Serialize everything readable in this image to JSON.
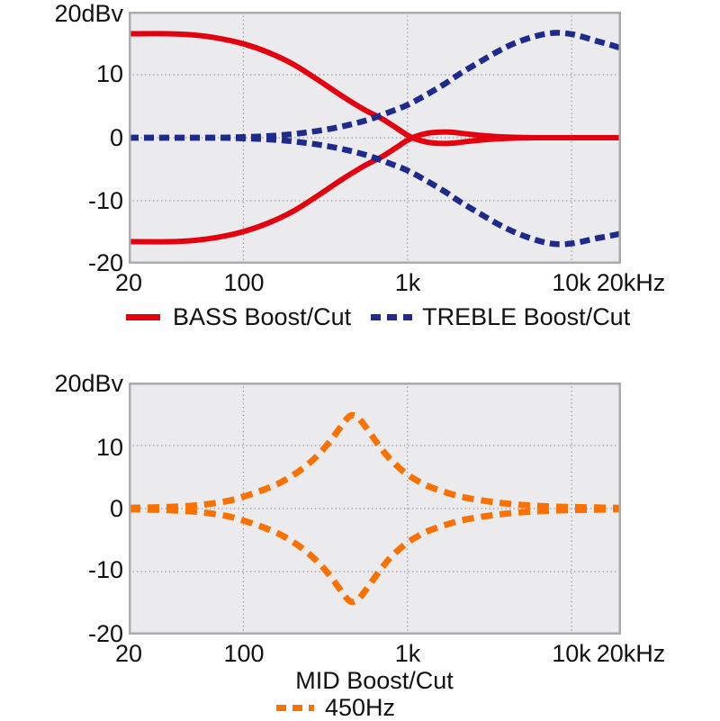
{
  "chart_data": [
    {
      "type": "line",
      "x_scale": "log",
      "freq_range_hz": [
        20,
        20000
      ],
      "db_range": [
        -20,
        20
      ],
      "y_axis_top_label": "20dBv",
      "x_tick_labels": [
        "20",
        "100",
        "1k",
        "10k",
        "20kHz"
      ],
      "y_tick_labels": [
        "10",
        "0",
        "-10",
        "-20"
      ],
      "x_grid_freqs": [
        100,
        1000,
        10000
      ],
      "y_grid_db": [
        10,
        0,
        -10
      ],
      "plot_bg": "#ebebee",
      "grid_on": true,
      "legend_position": "bottom",
      "legend": [
        {
          "label": "BASS Boost/Cut",
          "color": "#e3000f",
          "style": "solid"
        },
        {
          "label": "TREBLE Boost/Cut",
          "color": "#202a8a",
          "style": "dashed"
        }
      ],
      "series": [
        {
          "name": "bass-boost",
          "color": "#e3000f",
          "width": 6,
          "dash": null,
          "points": [
            [
              20,
              16.5
            ],
            [
              35,
              16.5
            ],
            [
              50,
              16.3
            ],
            [
              70,
              15.8
            ],
            [
              100,
              14.9
            ],
            [
              140,
              13.6
            ],
            [
              200,
              11.7
            ],
            [
              280,
              9.3
            ],
            [
              400,
              6.6
            ],
            [
              550,
              4.4
            ],
            [
              700,
              3.0
            ],
            [
              850,
              1.6
            ],
            [
              1000,
              0.4
            ],
            [
              1150,
              -0.3
            ],
            [
              1400,
              -0.8
            ],
            [
              1800,
              -0.9
            ],
            [
              2300,
              -0.6
            ],
            [
              3000,
              -0.3
            ],
            [
              4000,
              -0.1
            ],
            [
              6000,
              0
            ],
            [
              10000,
              0
            ],
            [
              20000,
              0
            ]
          ]
        },
        {
          "name": "bass-cut",
          "color": "#e3000f",
          "width": 6,
          "dash": null,
          "points": [
            [
              20,
              -16.5
            ],
            [
              35,
              -16.5
            ],
            [
              50,
              -16.3
            ],
            [
              70,
              -15.8
            ],
            [
              100,
              -14.9
            ],
            [
              140,
              -13.6
            ],
            [
              200,
              -11.7
            ],
            [
              280,
              -9.3
            ],
            [
              400,
              -6.6
            ],
            [
              550,
              -4.4
            ],
            [
              700,
              -3.0
            ],
            [
              850,
              -1.6
            ],
            [
              1000,
              -0.4
            ],
            [
              1150,
              0.3
            ],
            [
              1400,
              0.8
            ],
            [
              1800,
              0.9
            ],
            [
              2300,
              0.6
            ],
            [
              3000,
              0.3
            ],
            [
              4000,
              0.1
            ],
            [
              6000,
              0
            ],
            [
              10000,
              0
            ],
            [
              20000,
              0
            ]
          ]
        },
        {
          "name": "treble-boost",
          "color": "#202a8a",
          "width": 6.5,
          "dash": "11 6",
          "points": [
            [
              20,
              0
            ],
            [
              60,
              0
            ],
            [
              100,
              0.1
            ],
            [
              150,
              0.3
            ],
            [
              220,
              0.7
            ],
            [
              320,
              1.3
            ],
            [
              450,
              2.1
            ],
            [
              600,
              3.0
            ],
            [
              800,
              4.2
            ],
            [
              1000,
              5.2
            ],
            [
              1300,
              6.8
            ],
            [
              1700,
              8.6
            ],
            [
              2100,
              10.2
            ],
            [
              2700,
              11.9
            ],
            [
              3500,
              13.6
            ],
            [
              4500,
              15.0
            ],
            [
              6000,
              16.1
            ],
            [
              7500,
              16.6
            ],
            [
              9000,
              16.6
            ],
            [
              11000,
              16.2
            ],
            [
              14000,
              15.4
            ],
            [
              17000,
              14.8
            ],
            [
              20000,
              14.2
            ]
          ]
        },
        {
          "name": "treble-cut",
          "color": "#202a8a",
          "width": 6.5,
          "dash": "11 6",
          "points": [
            [
              20,
              0
            ],
            [
              60,
              0
            ],
            [
              100,
              -0.1
            ],
            [
              150,
              -0.3
            ],
            [
              220,
              -0.7
            ],
            [
              320,
              -1.3
            ],
            [
              450,
              -2.1
            ],
            [
              600,
              -3.0
            ],
            [
              800,
              -4.2
            ],
            [
              1000,
              -5.2
            ],
            [
              1300,
              -6.8
            ],
            [
              1700,
              -8.6
            ],
            [
              2100,
              -10.2
            ],
            [
              2700,
              -11.9
            ],
            [
              3500,
              -13.6
            ],
            [
              4500,
              -15.0
            ],
            [
              6000,
              -16.2
            ],
            [
              7500,
              -16.8
            ],
            [
              9000,
              -16.9
            ],
            [
              11000,
              -16.6
            ],
            [
              14000,
              -16.0
            ],
            [
              17000,
              -15.6
            ],
            [
              20000,
              -15.2
            ]
          ]
        }
      ]
    },
    {
      "type": "line",
      "x_scale": "log",
      "freq_range_hz": [
        20,
        20000
      ],
      "db_range": [
        -20,
        20
      ],
      "y_axis_top_label": "20dBv",
      "title": "MID Boost/Cut",
      "x_tick_labels": [
        "20",
        "100",
        "1k",
        "10k",
        "20kHz"
      ],
      "y_tick_labels": [
        "10",
        "0",
        "-10",
        "-20"
      ],
      "x_grid_freqs": [
        100,
        1000,
        10000
      ],
      "y_grid_db": [
        10,
        0,
        -10
      ],
      "plot_bg": "#ebebee",
      "grid_on": true,
      "legend_position": "bottom",
      "legend": [
        {
          "label": "450Hz",
          "color": "#f97100",
          "style": "dashed"
        }
      ],
      "series": [
        {
          "name": "mid-boost",
          "color": "#f97100",
          "width": 7,
          "dash": "13 8",
          "points": [
            [
              20,
              0.1
            ],
            [
              30,
              0.2
            ],
            [
              45,
              0.4
            ],
            [
              60,
              0.7
            ],
            [
              80,
              1.2
            ],
            [
              100,
              1.9
            ],
            [
              130,
              2.9
            ],
            [
              170,
              4.2
            ],
            [
              220,
              6.0
            ],
            [
              280,
              8.3
            ],
            [
              340,
              10.8
            ],
            [
              400,
              13.3
            ],
            [
              440,
              14.6
            ],
            [
              470,
              14.8
            ],
            [
              510,
              14.2
            ],
            [
              580,
              12.3
            ],
            [
              680,
              9.8
            ],
            [
              800,
              7.6
            ],
            [
              1000,
              5.4
            ],
            [
              1300,
              3.7
            ],
            [
              1700,
              2.6
            ],
            [
              2200,
              1.8
            ],
            [
              3000,
              1.2
            ],
            [
              4000,
              0.8
            ],
            [
              5500,
              0.5
            ],
            [
              8000,
              0.3
            ],
            [
              12000,
              0.2
            ],
            [
              20000,
              0.1
            ]
          ]
        },
        {
          "name": "mid-cut",
          "color": "#f97100",
          "width": 7,
          "dash": "13 8",
          "points": [
            [
              20,
              -0.1
            ],
            [
              30,
              -0.2
            ],
            [
              45,
              -0.4
            ],
            [
              60,
              -0.7
            ],
            [
              80,
              -1.2
            ],
            [
              100,
              -1.9
            ],
            [
              130,
              -2.9
            ],
            [
              170,
              -4.2
            ],
            [
              220,
              -6.0
            ],
            [
              280,
              -8.3
            ],
            [
              340,
              -10.8
            ],
            [
              400,
              -13.3
            ],
            [
              440,
              -14.6
            ],
            [
              470,
              -14.8
            ],
            [
              510,
              -14.2
            ],
            [
              580,
              -12.3
            ],
            [
              680,
              -9.8
            ],
            [
              800,
              -7.6
            ],
            [
              1000,
              -5.4
            ],
            [
              1300,
              -3.7
            ],
            [
              1700,
              -2.6
            ],
            [
              2200,
              -1.8
            ],
            [
              3000,
              -1.2
            ],
            [
              4000,
              -0.8
            ],
            [
              5500,
              -0.5
            ],
            [
              8000,
              -0.3
            ],
            [
              12000,
              -0.2
            ],
            [
              20000,
              -0.1
            ]
          ]
        }
      ]
    }
  ]
}
